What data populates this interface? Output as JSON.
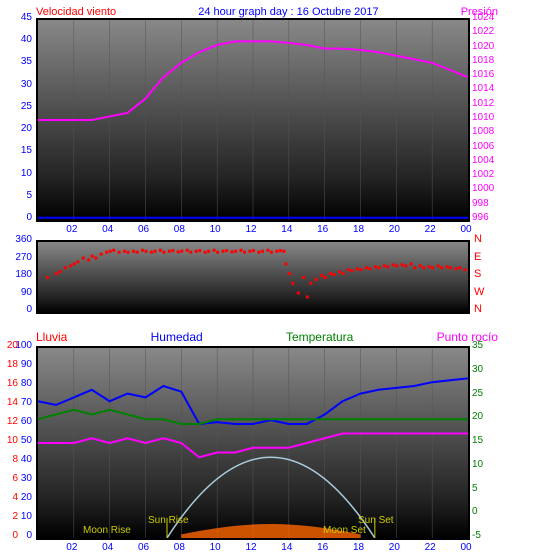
{
  "title": "24 hour graph day : 16 Octubre 2017",
  "panel1": {
    "left_label": "Velocidad viento",
    "right_label": "Presión",
    "left_color": "#ff0000",
    "right_color": "#ff00ff",
    "title_color": "#0000ff",
    "y_left": {
      "min": 0,
      "max": 45,
      "step": 5,
      "color": "#0000ff"
    },
    "y_right": {
      "min": 996,
      "max": 1024,
      "step": 2,
      "color": "#ff00ff"
    },
    "wind_line_color": "#0000ff",
    "pressure_line_color": "#ff00ff",
    "pressure_values": [
      1010,
      1010,
      1010,
      1010,
      1010.5,
      1011,
      1013,
      1016,
      1018,
      1019.5,
      1020.5,
      1021,
      1021,
      1021,
      1020.8,
      1020.5,
      1020,
      1020,
      1019.8,
      1019.5,
      1019,
      1018.5,
      1018,
      1017,
      1016
    ],
    "wind_values": [
      0.5,
      0.5,
      0.5,
      0.5,
      0.5,
      0.5,
      0.5,
      0.5,
      0.5,
      0.5,
      0.5,
      0.5,
      0.5,
      0.5,
      0.5,
      0.5,
      0.5,
      0.5,
      0.5,
      0.5,
      0.5,
      0.5,
      0.5,
      0.5,
      0.5
    ]
  },
  "panel2": {
    "y_ticks": [
      0,
      90,
      180,
      270,
      360
    ],
    "compass": [
      "N",
      "W",
      "S",
      "E",
      "N"
    ],
    "point_color": "#ff0000",
    "points": [
      [
        0.5,
        180
      ],
      [
        1,
        200
      ],
      [
        1.2,
        210
      ],
      [
        1.5,
        230
      ],
      [
        1.8,
        240
      ],
      [
        2,
        250
      ],
      [
        2.2,
        260
      ],
      [
        2.5,
        280
      ],
      [
        2.8,
        270
      ],
      [
        3,
        290
      ],
      [
        3.2,
        280
      ],
      [
        3.5,
        300
      ],
      [
        3.8,
        310
      ],
      [
        4,
        315
      ],
      [
        4.2,
        320
      ],
      [
        4.5,
        310
      ],
      [
        4.8,
        315
      ],
      [
        5,
        310
      ],
      [
        5.3,
        315
      ],
      [
        5.5,
        310
      ],
      [
        5.8,
        320
      ],
      [
        6,
        315
      ],
      [
        6.3,
        310
      ],
      [
        6.5,
        315
      ],
      [
        6.8,
        320
      ],
      [
        7,
        310
      ],
      [
        7.3,
        315
      ],
      [
        7.5,
        318
      ],
      [
        7.8,
        312
      ],
      [
        8,
        315
      ],
      [
        8.3,
        320
      ],
      [
        8.5,
        310
      ],
      [
        8.8,
        315
      ],
      [
        9,
        318
      ],
      [
        9.3,
        310
      ],
      [
        9.5,
        315
      ],
      [
        9.8,
        320
      ],
      [
        10,
        310
      ],
      [
        10.3,
        315
      ],
      [
        10.5,
        318
      ],
      [
        10.8,
        312
      ],
      [
        11,
        315
      ],
      [
        11.3,
        320
      ],
      [
        11.5,
        310
      ],
      [
        11.8,
        315
      ],
      [
        12,
        318
      ],
      [
        12.3,
        310
      ],
      [
        12.5,
        315
      ],
      [
        12.8,
        320
      ],
      [
        13,
        310
      ],
      [
        13.3,
        315
      ],
      [
        13.5,
        318
      ],
      [
        13.7,
        315
      ],
      [
        13.8,
        250
      ],
      [
        14,
        200
      ],
      [
        14.2,
        150
      ],
      [
        14.5,
        100
      ],
      [
        14.8,
        180
      ],
      [
        15,
        80
      ],
      [
        15.2,
        150
      ],
      [
        15.5,
        170
      ],
      [
        15.8,
        190
      ],
      [
        16,
        180
      ],
      [
        16.3,
        200
      ],
      [
        16.5,
        195
      ],
      [
        16.8,
        210
      ],
      [
        17,
        200
      ],
      [
        17.3,
        220
      ],
      [
        17.5,
        215
      ],
      [
        17.8,
        225
      ],
      [
        18,
        220
      ],
      [
        18.3,
        230
      ],
      [
        18.5,
        225
      ],
      [
        18.8,
        235
      ],
      [
        19,
        230
      ],
      [
        19.3,
        240
      ],
      [
        19.5,
        235
      ],
      [
        19.8,
        245
      ],
      [
        20,
        240
      ],
      [
        20.3,
        245
      ],
      [
        20.5,
        240
      ],
      [
        20.8,
        250
      ],
      [
        21,
        230
      ],
      [
        21.3,
        240
      ],
      [
        21.5,
        230
      ],
      [
        21.8,
        235
      ],
      [
        22,
        230
      ],
      [
        22.3,
        240
      ],
      [
        22.5,
        230
      ],
      [
        22.8,
        235
      ],
      [
        23,
        230
      ],
      [
        23.3,
        225
      ],
      [
        23.5,
        230
      ],
      [
        23.8,
        220
      ]
    ]
  },
  "panel3": {
    "labels": [
      {
        "text": "Lluvia",
        "color": "#ff0000"
      },
      {
        "text": "Humedad",
        "color": "#0000ff"
      },
      {
        "text": "Temperatura",
        "color": "#008000"
      },
      {
        "text": "Punto rocío",
        "color": "#ff00ff"
      }
    ],
    "y_left": {
      "min": 0,
      "max": 100,
      "step": 10,
      "ticks": [
        0,
        10,
        20,
        30,
        40,
        50,
        60,
        70,
        80,
        90,
        100
      ],
      "color": "#0000ff"
    },
    "y_left2": {
      "ticks": [
        0,
        2,
        4,
        6,
        8,
        10,
        12,
        14,
        16,
        18,
        20
      ],
      "color": "#ff0000"
    },
    "y_right": {
      "min": -5,
      "max": 35,
      "step": 5,
      "color": "#008000"
    },
    "humidity": [
      72,
      70,
      74,
      78,
      72,
      76,
      74,
      80,
      77,
      60,
      61,
      60,
      60,
      62,
      60,
      60,
      65,
      72,
      76,
      78,
      79,
      80,
      82,
      83,
      84
    ],
    "temperature": [
      20,
      21,
      22,
      21,
      22,
      21,
      20,
      20,
      19,
      19,
      20,
      20,
      20,
      20,
      20,
      20,
      20,
      20,
      20,
      20,
      20,
      20,
      20,
      20,
      20
    ],
    "dewpoint": [
      15,
      15,
      15,
      16,
      15,
      16,
      15,
      16,
      15,
      12,
      13,
      13,
      14,
      14,
      14,
      15,
      16,
      17,
      17,
      17,
      17,
      17,
      17,
      17,
      17
    ],
    "sun_curve_color": "#aaccdd",
    "sunrise": {
      "label": "Sun Rise",
      "hour": 7.2
    },
    "sunset": {
      "label": "Sun Set",
      "hour": 18.8
    },
    "moonrise": {
      "label": "Moon Rise",
      "hour": 3.5
    },
    "moonset": {
      "label": "Moon Set",
      "hour": 17
    }
  },
  "x_axis": {
    "ticks": [
      "02",
      "04",
      "06",
      "08",
      "10",
      "12",
      "14",
      "16",
      "18",
      "20",
      "22",
      "00"
    ],
    "color": "#0000ff"
  }
}
